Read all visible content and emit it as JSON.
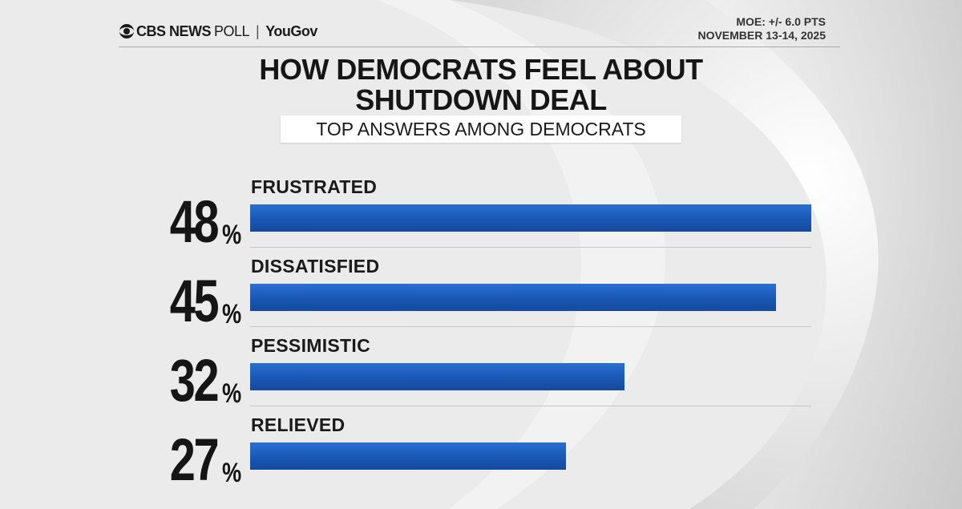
{
  "header": {
    "network": "CBS NEWS",
    "poll_word": "POLL",
    "separator": "|",
    "partner": "YouGov",
    "moe": "MOE: +/- 6.0 PTS",
    "date": "NOVEMBER 13-14, 2025"
  },
  "colors": {
    "bar": "#1a57b5",
    "text": "#161616",
    "background": "#ececec"
  },
  "chart_data": {
    "type": "bar",
    "orientation": "horizontal",
    "title_line1": "HOW DEMOCRATS FEEL ABOUT",
    "title_line2": "SHUTDOWN DEAL",
    "subtitle": "TOP ANSWERS AMONG DEMOCRATS",
    "categories": [
      "FRUSTRATED",
      "DISSATISFIED",
      "PESSIMISTIC",
      "RELIEVED"
    ],
    "values": [
      48,
      45,
      32,
      27
    ],
    "value_labels": [
      "48",
      "45",
      "32",
      "27"
    ],
    "unit": "%",
    "xlim": [
      0,
      48
    ],
    "grid": false,
    "legend": "none"
  }
}
